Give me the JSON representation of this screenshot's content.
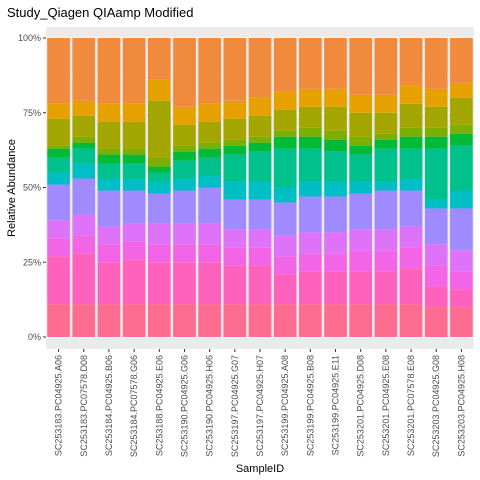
{
  "chart_data": {
    "type": "bar",
    "stacked": true,
    "title": "Study_Qiagen QIAamp  Modified",
    "xlabel": "SampleID",
    "ylabel": "Relative Abundance",
    "ylim": [
      0,
      1
    ],
    "yticks": [
      0,
      0.25,
      0.5,
      0.75,
      1
    ],
    "ytick_labels": [
      "0%",
      "25%",
      "50%",
      "75%",
      "100%"
    ],
    "grid": true,
    "legend": "none",
    "categories": [
      "SC253183.PC04925.A06",
      "SC253183.PC07578.D08",
      "SC253184.PC04925.B06",
      "SC253184.PC07578.G06",
      "SC253188.PC04925.E06",
      "SC253190.PC04925.G06",
      "SC253190.PC04925.H06",
      "SC253197.PC04925.G07",
      "SC253197.PC04925.H07",
      "SC253199.PC04925.A08",
      "SC253199.PC04925.B08",
      "SC253199.PC04925.E11",
      "SC253201.PC04925.D08",
      "SC253201.PC04925.E08",
      "SC253201.PC07578.E08",
      "SC253203.PC04925.G08",
      "SC253203.PC04925.H08"
    ],
    "series": [
      {
        "color": "#FF6C91",
        "values": [
          0.11,
          0.11,
          0.11,
          0.11,
          0.11,
          0.11,
          0.11,
          0.11,
          0.11,
          0.11,
          0.11,
          0.11,
          0.11,
          0.11,
          0.11,
          0.1,
          0.1
        ]
      },
      {
        "color": "#FF62BC",
        "values": [
          0.16,
          0.17,
          0.14,
          0.15,
          0.14,
          0.14,
          0.14,
          0.13,
          0.13,
          0.1,
          0.11,
          0.11,
          0.11,
          0.11,
          0.12,
          0.07,
          0.06
        ]
      },
      {
        "color": "#F265E7",
        "values": [
          0.06,
          0.06,
          0.06,
          0.06,
          0.06,
          0.06,
          0.06,
          0.06,
          0.06,
          0.06,
          0.06,
          0.06,
          0.07,
          0.07,
          0.07,
          0.07,
          0.06
        ]
      },
      {
        "color": "#DE72F8",
        "values": [
          0.06,
          0.07,
          0.06,
          0.06,
          0.07,
          0.07,
          0.07,
          0.06,
          0.06,
          0.07,
          0.07,
          0.07,
          0.07,
          0.07,
          0.07,
          0.07,
          0.07
        ]
      },
      {
        "color": "#A08AFF",
        "values": [
          0.12,
          0.12,
          0.12,
          0.11,
          0.1,
          0.11,
          0.12,
          0.1,
          0.1,
          0.11,
          0.12,
          0.12,
          0.12,
          0.13,
          0.12,
          0.12,
          0.14
        ]
      },
      {
        "color": "#00BFC4",
        "values": [
          0.04,
          0.05,
          0.04,
          0.04,
          0.04,
          0.04,
          0.04,
          0.06,
          0.06,
          0.05,
          0.05,
          0.05,
          0.04,
          0.03,
          0.04,
          0.03,
          0.06
        ]
      },
      {
        "color": "#00C08B",
        "values": [
          0.05,
          0.05,
          0.05,
          0.05,
          0.03,
          0.06,
          0.06,
          0.09,
          0.1,
          0.13,
          0.11,
          0.1,
          0.09,
          0.11,
          0.1,
          0.17,
          0.15
        ]
      },
      {
        "color": "#00BA38",
        "values": [
          0.03,
          0.02,
          0.03,
          0.03,
          0.02,
          0.03,
          0.03,
          0.03,
          0.03,
          0.04,
          0.04,
          0.04,
          0.03,
          0.03,
          0.04,
          0.04,
          0.04
        ]
      },
      {
        "color": "#7CAE00",
        "values": [
          0.01,
          0.02,
          0.02,
          0.02,
          0.03,
          0.02,
          0.02,
          0.02,
          0.02,
          0.02,
          0.03,
          0.03,
          0.03,
          0.02,
          0.03,
          0.03,
          0.03
        ]
      },
      {
        "color": "#A3A500",
        "values": [
          0.09,
          0.07,
          0.09,
          0.09,
          0.19,
          0.07,
          0.07,
          0.07,
          0.07,
          0.07,
          0.07,
          0.08,
          0.08,
          0.07,
          0.08,
          0.07,
          0.09
        ]
      },
      {
        "color": "#E6A000",
        "values": [
          0.05,
          0.05,
          0.06,
          0.06,
          0.07,
          0.06,
          0.06,
          0.06,
          0.06,
          0.06,
          0.06,
          0.06,
          0.06,
          0.06,
          0.06,
          0.06,
          0.05
        ]
      },
      {
        "color": "#F08A3C",
        "values": [
          0.22,
          0.21,
          0.22,
          0.22,
          0.14,
          0.23,
          0.22,
          0.21,
          0.2,
          0.18,
          0.17,
          0.17,
          0.19,
          0.19,
          0.16,
          0.17,
          0.15
        ]
      }
    ]
  },
  "colors": {
    "panel_background": "#EBEBEB",
    "grid_major": "#FFFFFF",
    "grid_minor": "#F2F2F2"
  }
}
